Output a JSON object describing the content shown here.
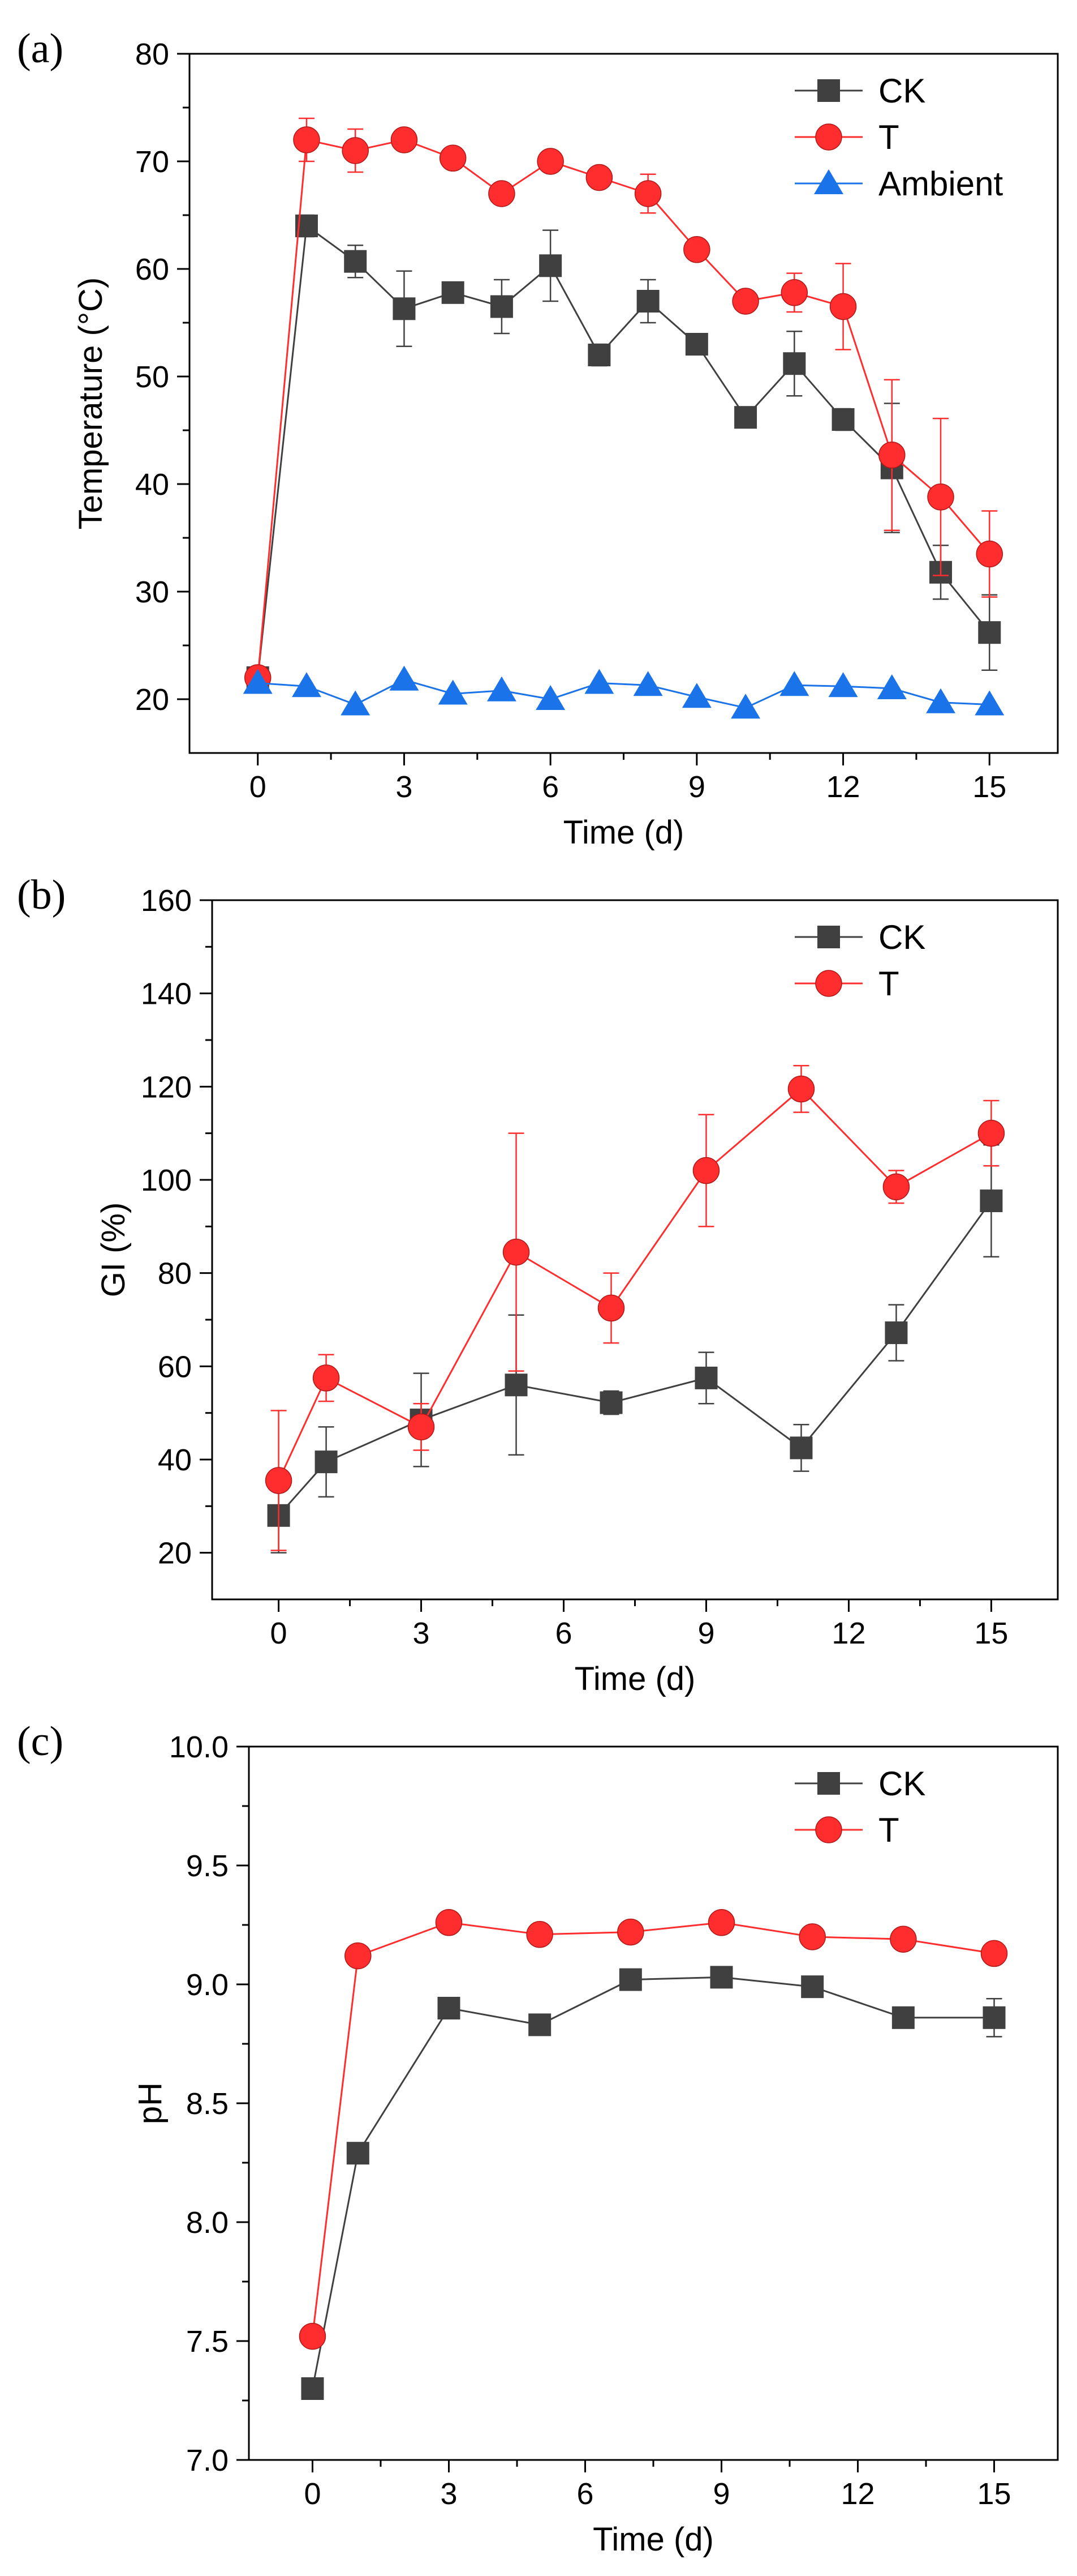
{
  "colors": {
    "ck": "#404040",
    "t": "#ff2d2d",
    "ambient": "#1a73e8",
    "axis": "#000000"
  },
  "chart_data": [
    {
      "id": "a",
      "panel_label": "(a)",
      "type": "line",
      "xlabel": "Time (d)",
      "ylabel": "Temperature (°C)",
      "xlim": [
        -1.4,
        16.4
      ],
      "ylim": [
        15,
        80
      ],
      "xticks": [
        0,
        3,
        6,
        9,
        12,
        15
      ],
      "xtick_labels": [
        "0",
        "3",
        "6",
        "9",
        "12",
        "15"
      ],
      "yticks": [
        20,
        30,
        40,
        50,
        60,
        70,
        80
      ],
      "ytick_labels": [
        "20",
        "30",
        "40",
        "50",
        "60",
        "70",
        "80"
      ],
      "legend": "top-right",
      "series": [
        {
          "name": "CK",
          "color_key": "ck",
          "marker": "square",
          "x": [
            0,
            1,
            2,
            3,
            4,
            5,
            6,
            7,
            8,
            9,
            10,
            11,
            12,
            13,
            14,
            15
          ],
          "values": [
            22,
            64,
            60.7,
            56.3,
            57.8,
            56.5,
            60.3,
            52,
            57,
            53,
            46.2,
            51.2,
            46,
            41.5,
            31.8,
            26.2
          ],
          "errors": [
            0.5,
            1,
            1.5,
            3.5,
            0.8,
            2.5,
            3.3,
            1,
            2,
            0.5,
            0.8,
            3,
            1,
            6,
            2.5,
            3.5
          ]
        },
        {
          "name": "T",
          "color_key": "t",
          "marker": "circle",
          "x": [
            0,
            1,
            2,
            3,
            4,
            5,
            6,
            7,
            8,
            9,
            10,
            11,
            12,
            13,
            14,
            15
          ],
          "values": [
            22,
            72,
            71,
            72,
            70.3,
            67,
            70,
            68.5,
            67,
            61.8,
            57,
            57.8,
            56.5,
            42.7,
            38.8,
            33.5
          ],
          "errors": [
            0.5,
            2,
            2,
            0.5,
            0.5,
            0.5,
            0.5,
            0.5,
            1.8,
            0.5,
            0.5,
            1.8,
            4,
            7,
            7.3,
            4
          ]
        },
        {
          "name": "Ambient",
          "color_key": "ambient",
          "marker": "triangle",
          "x": [
            0,
            1,
            2,
            3,
            4,
            5,
            6,
            7,
            8,
            9,
            10,
            11,
            12,
            13,
            14,
            15
          ],
          "values": [
            21.5,
            21.2,
            19.5,
            21.8,
            20.5,
            20.8,
            20,
            21.5,
            21.3,
            20.2,
            19.2,
            21.3,
            21.2,
            21,
            19.7,
            19.5
          ],
          "errors": []
        }
      ]
    },
    {
      "id": "b",
      "panel_label": "(b)",
      "type": "line",
      "xlabel": "Time (d)",
      "ylabel": "GI (%)",
      "xlim": [
        -1.4,
        16.4
      ],
      "ylim": [
        10,
        160
      ],
      "xticks": [
        0,
        3,
        6,
        9,
        12,
        15
      ],
      "xtick_labels": [
        "0",
        "3",
        "6",
        "9",
        "12",
        "15"
      ],
      "yticks": [
        20,
        40,
        60,
        80,
        100,
        120,
        140,
        160
      ],
      "ytick_labels": [
        "20",
        "40",
        "60",
        "80",
        "100",
        "120",
        "140",
        "160"
      ],
      "legend": "top-right",
      "series": [
        {
          "name": "CK",
          "color_key": "ck",
          "marker": "square",
          "x": [
            0,
            1,
            3,
            5,
            7,
            9,
            11,
            13,
            15
          ],
          "values": [
            28,
            39.5,
            48.5,
            56,
            52.2,
            57.5,
            42.5,
            67.2,
            95.5
          ],
          "errors": [
            8,
            7.5,
            10,
            15,
            2.5,
            5.5,
            5,
            6,
            12
          ]
        },
        {
          "name": "T",
          "color_key": "t",
          "marker": "circle",
          "x": [
            0,
            1,
            3,
            5,
            7,
            9,
            11,
            13,
            15
          ],
          "values": [
            35.5,
            57.5,
            47,
            84.5,
            72.5,
            102,
            119.5,
            98.5,
            110
          ],
          "errors": [
            15,
            5,
            5,
            25.5,
            7.5,
            12,
            5,
            3.5,
            7
          ]
        }
      ]
    },
    {
      "id": "c",
      "panel_label": "(c)",
      "type": "line",
      "xlabel": "Time (d)",
      "ylabel": "pH",
      "xlim": [
        -1.4,
        16.4
      ],
      "ylim": [
        7.0,
        10.0
      ],
      "xticks": [
        0,
        3,
        6,
        9,
        12,
        15
      ],
      "xtick_labels": [
        "0",
        "3",
        "6",
        "9",
        "12",
        "15"
      ],
      "yticks": [
        7.0,
        7.5,
        8.0,
        8.5,
        9.0,
        9.5,
        10.0
      ],
      "ytick_labels": [
        "7.0",
        "7.5",
        "8.0",
        "8.5",
        "9.0",
        "9.5",
        "10.0"
      ],
      "legend": "top-right",
      "series": [
        {
          "name": "CK",
          "color_key": "ck",
          "marker": "square",
          "x": [
            0,
            1,
            3,
            5,
            7,
            9,
            11,
            13,
            15
          ],
          "values": [
            7.3,
            8.29,
            8.9,
            8.83,
            9.02,
            9.03,
            8.99,
            8.86,
            8.86
          ],
          "errors": [
            0,
            0,
            0,
            0,
            0,
            0,
            0,
            0,
            0.08
          ]
        },
        {
          "name": "T",
          "color_key": "t",
          "marker": "circle",
          "x": [
            0,
            1,
            3,
            5,
            7,
            9,
            11,
            13,
            15
          ],
          "values": [
            7.52,
            9.12,
            9.26,
            9.21,
            9.22,
            9.26,
            9.2,
            9.19,
            9.13
          ],
          "errors": [
            0,
            0,
            0,
            0,
            0,
            0,
            0,
            0,
            0
          ]
        }
      ]
    }
  ]
}
